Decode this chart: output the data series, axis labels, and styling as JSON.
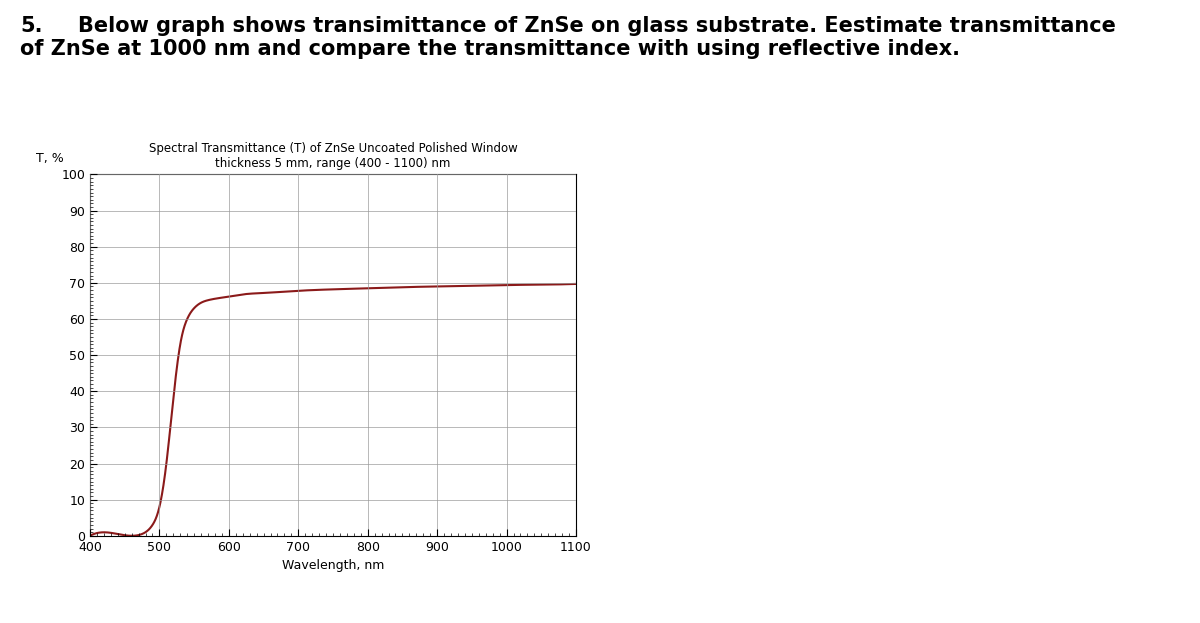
{
  "title_line1": "Spectral Transmittance (T) of ZnSe Uncoated Polished Window",
  "title_line2": "thickness 5 mm, range (400 - 1100) nm",
  "ylabel": "T, %",
  "xlabel": "Wavelength, nm",
  "xlim": [
    400,
    1100
  ],
  "ylim": [
    0,
    100
  ],
  "xticks": [
    400,
    500,
    600,
    700,
    800,
    900,
    1000,
    1100
  ],
  "yticks": [
    0,
    10,
    20,
    30,
    40,
    50,
    60,
    70,
    80,
    90,
    100
  ],
  "curve_color": "#8B1A1A",
  "curve_linewidth": 1.5,
  "grid_color": "#999999",
  "background_color": "#ffffff",
  "outer_text_number": "5.",
  "outer_text_body": "        Below graph shows transimittance of ZnSe on glass substrate. Eestimate transmittance\nof ZnSe at 1000 nm and compare the transmittance with using reflective index.",
  "title_fontsize": 8.5,
  "axis_label_fontsize": 9,
  "tick_fontsize": 9,
  "outer_fontsize": 15,
  "curve_wavelengths": [
    400,
    460,
    470,
    480,
    490,
    500,
    510,
    520,
    530,
    540,
    550,
    560,
    570,
    580,
    600,
    620,
    650,
    700,
    750,
    800,
    850,
    900,
    950,
    1000,
    1050,
    1100
  ],
  "curve_transmittance": [
    0,
    0,
    0.2,
    1,
    3,
    8,
    20,
    38,
    53,
    60,
    63,
    64.5,
    65.2,
    65.6,
    66.2,
    66.8,
    67.2,
    67.8,
    68.2,
    68.5,
    68.8,
    69.0,
    69.2,
    69.4,
    69.5,
    69.7
  ]
}
